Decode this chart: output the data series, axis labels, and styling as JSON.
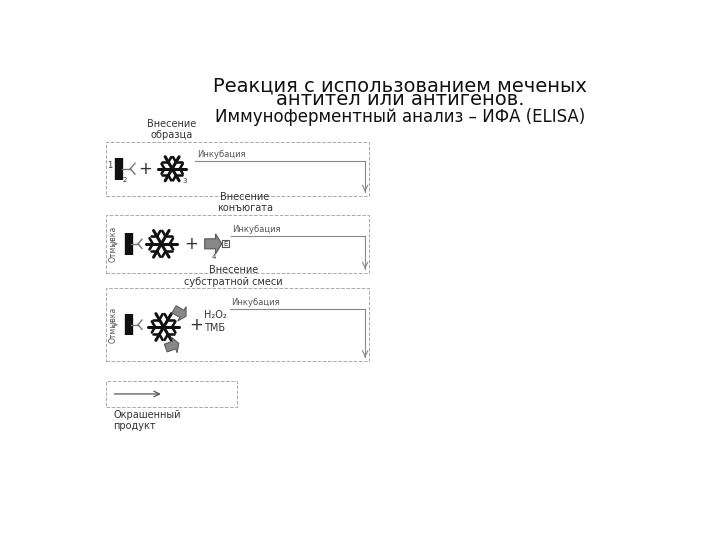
{
  "title_line1": "Реакция с использованием меченых",
  "title_line2": "антител или антигенов.",
  "subtitle": "Иммуноферментный анализ – ИФА (ELISA)",
  "title_fontsize": 14,
  "subtitle_fontsize": 12,
  "bg_color": "#ffffff",
  "label_fontsize": 7,
  "small_fontsize": 6,
  "panel1": {
    "label_top": "Внесение\nобразца",
    "label_right": "Инкубация",
    "num2": "2",
    "num3": "3"
  },
  "panel2": {
    "label_top": "Внесение\nконъюгата",
    "label_right": "Инкубация",
    "label_left": "Отмывка",
    "num4": "4"
  },
  "panel3": {
    "label_top": "Внесение\nсубстратной смеси",
    "label_right": "Инкубация",
    "label_left": "Отмывка",
    "label_chem": "Н₂О₂\nТМБ"
  },
  "panel4": {
    "label_bottom": "Окрашенный\nпродукт"
  }
}
